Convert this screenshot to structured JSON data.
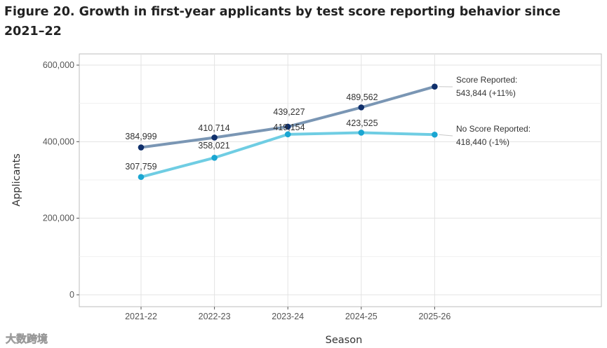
{
  "figure_title": "Figure 20. Growth in first-year applicants by test score reporting behavior since 2021–22",
  "watermark": "大数跨境",
  "chart_data": {
    "type": "line",
    "title": "Figure 20. Growth in first-year applicants by test score reporting behavior since 2021–22",
    "xlabel": "Season",
    "ylabel": "Applicants",
    "categories": [
      "2021-22",
      "2022-23",
      "2023-24",
      "2024-25",
      "2025-26"
    ],
    "ylim": [
      0,
      620000
    ],
    "yticks": [
      0,
      200000,
      400000,
      600000
    ],
    "ytick_labels": [
      "0",
      "200,000",
      "400,000",
      "600,000"
    ],
    "grid": true,
    "series": [
      {
        "name": "Score Reported",
        "values": [
          384999,
          410714,
          439227,
          489562,
          543844
        ],
        "data_labels": [
          "384,999",
          "410,714",
          "439,227",
          "489,562"
        ],
        "end_label_name": "Score Reported:",
        "end_label_value": "543,844 (+11%)",
        "line_color": "#7a96b4",
        "point_color": "#0f2f6b"
      },
      {
        "name": "No Score Reported",
        "values": [
          307759,
          358021,
          419154,
          423525,
          418440
        ],
        "data_labels": [
          "307,759",
          "358,021",
          "419,154",
          "423,525"
        ],
        "end_label_name": "No Score Reported:",
        "end_label_value": "418,440 (-1%)",
        "line_color": "#6fcde3",
        "point_color": "#1aa6d2"
      }
    ]
  }
}
